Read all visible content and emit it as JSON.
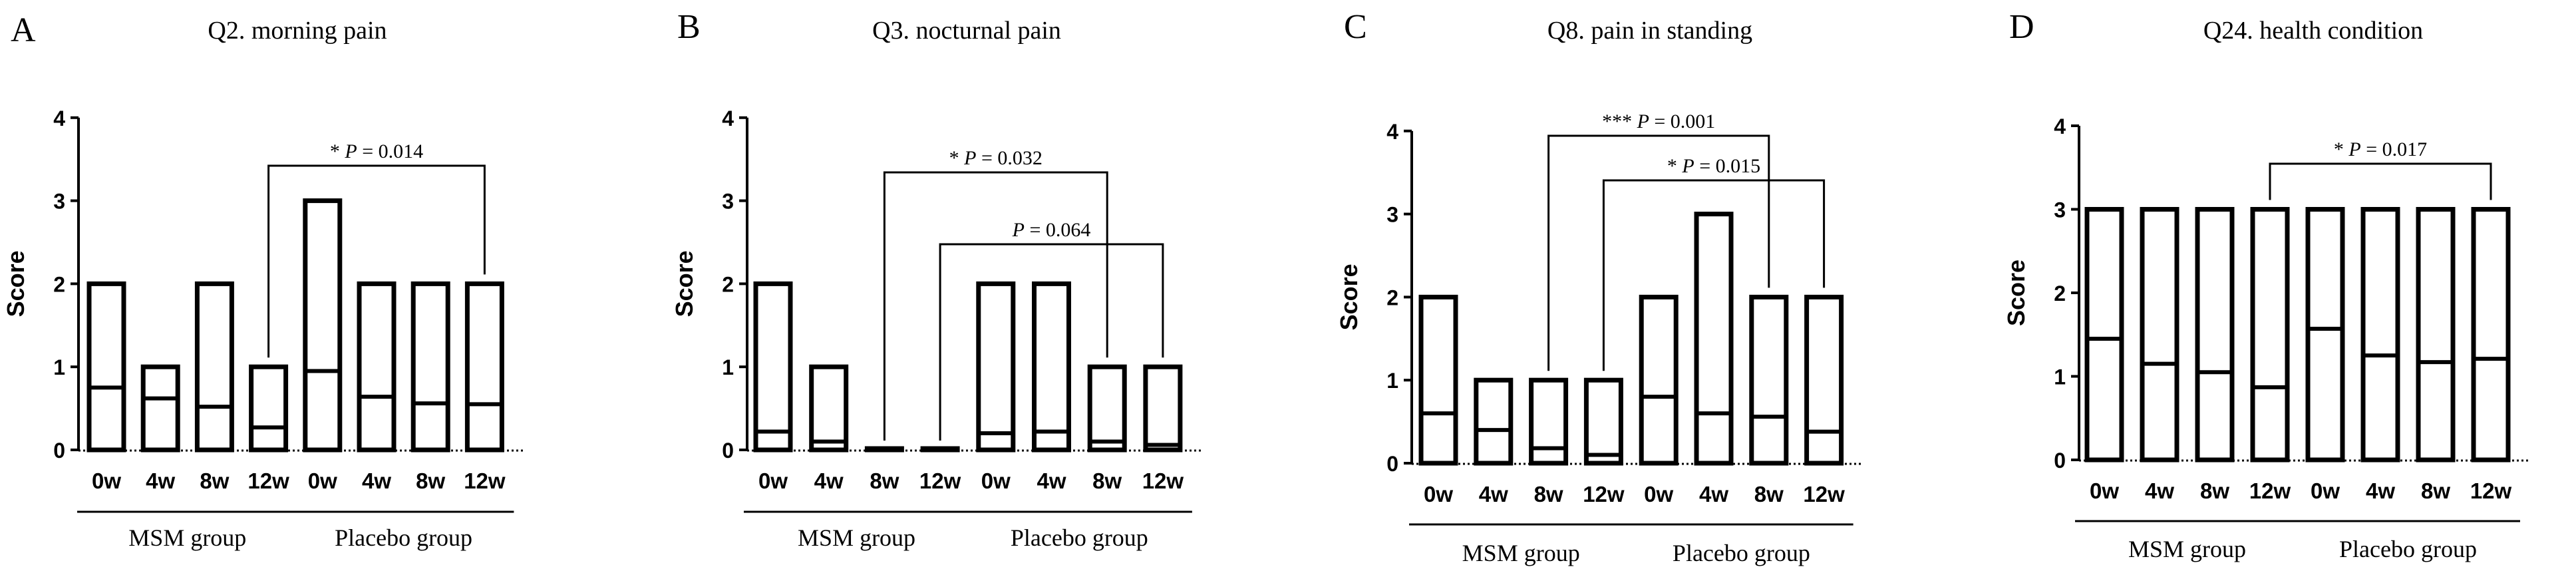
{
  "chart_data": [
    {
      "panel_letter": "A",
      "title": "Q2. morning pain",
      "type": "floating_bar",
      "ylabel": "Score",
      "ylim": [
        0,
        4
      ],
      "yticks": [
        "0",
        "1",
        "2",
        "3",
        "4"
      ],
      "categories": [
        "0w",
        "4w",
        "8w",
        "12w",
        "0w",
        "4w",
        "8w",
        "12w"
      ],
      "groups": [
        {
          "label": "MSM group",
          "from": 0,
          "to": 3
        },
        {
          "label": "Placebo group",
          "from": 4,
          "to": 7
        }
      ],
      "bars": [
        {
          "min": 0,
          "max": 2,
          "mean": 0.75
        },
        {
          "min": 0,
          "max": 1,
          "mean": 0.62
        },
        {
          "min": 0,
          "max": 2,
          "mean": 0.52
        },
        {
          "min": 0,
          "max": 1,
          "mean": 0.27
        },
        {
          "min": 0,
          "max": 3,
          "mean": 0.95
        },
        {
          "min": 0,
          "max": 2,
          "mean": 0.64
        },
        {
          "min": 0,
          "max": 2,
          "mean": 0.56
        },
        {
          "min": 0,
          "max": 2,
          "mean": 0.55
        }
      ],
      "annotations": [
        {
          "stars": "*",
          "p_label": "P",
          "p_value": "0.014",
          "from": 3,
          "to": 7
        }
      ]
    },
    {
      "panel_letter": "B",
      "title": "Q3. nocturnal pain",
      "type": "floating_bar",
      "ylabel": "Score",
      "ylim": [
        0,
        4
      ],
      "yticks": [
        "0",
        "1",
        "2",
        "3",
        "4"
      ],
      "categories": [
        "0w",
        "4w",
        "8w",
        "12w",
        "0w",
        "4w",
        "8w",
        "12w"
      ],
      "groups": [
        {
          "label": "MSM group",
          "from": 0,
          "to": 3
        },
        {
          "label": "Placebo group",
          "from": 4,
          "to": 7
        }
      ],
      "bars": [
        {
          "min": 0,
          "max": 2,
          "mean": 0.22
        },
        {
          "min": 0,
          "max": 1,
          "mean": 0.1
        },
        {
          "min": 0,
          "max": 0,
          "mean": 0
        },
        {
          "min": 0,
          "max": 0,
          "mean": 0
        },
        {
          "min": 0,
          "max": 2,
          "mean": 0.2
        },
        {
          "min": 0,
          "max": 2,
          "mean": 0.22
        },
        {
          "min": 0,
          "max": 1,
          "mean": 0.1
        },
        {
          "min": 0,
          "max": 1,
          "mean": 0.06
        }
      ],
      "annotations": [
        {
          "stars": "*",
          "p_label": "P",
          "p_value": "0.032",
          "from": 2,
          "to": 6
        },
        {
          "stars": "",
          "p_label": "P",
          "p_value": "0.064",
          "from": 3,
          "to": 7
        }
      ]
    },
    {
      "panel_letter": "C",
      "title": "Q8. pain in standing",
      "type": "floating_bar",
      "ylabel": "Score",
      "ylim": [
        0,
        4
      ],
      "yticks": [
        "0",
        "1",
        "2",
        "3",
        "4"
      ],
      "categories": [
        "0w",
        "4w",
        "8w",
        "12w",
        "0w",
        "4w",
        "8w",
        "12w"
      ],
      "groups": [
        {
          "label": "MSM group",
          "from": 0,
          "to": 3
        },
        {
          "label": "Placebo group",
          "from": 4,
          "to": 7
        }
      ],
      "bars": [
        {
          "min": 0,
          "max": 2,
          "mean": 0.6
        },
        {
          "min": 0,
          "max": 1,
          "mean": 0.4
        },
        {
          "min": 0,
          "max": 1,
          "mean": 0.18
        },
        {
          "min": 0,
          "max": 1,
          "mean": 0.1
        },
        {
          "min": 0,
          "max": 2,
          "mean": 0.8
        },
        {
          "min": 0,
          "max": 3,
          "mean": 0.6
        },
        {
          "min": 0,
          "max": 2,
          "mean": 0.56
        },
        {
          "min": 0,
          "max": 2,
          "mean": 0.38
        }
      ],
      "annotations": [
        {
          "stars": "***",
          "p_label": "P",
          "p_value": "0.001",
          "from": 2,
          "to": 6
        },
        {
          "stars": "*",
          "p_label": "P",
          "p_value": "0.015",
          "from": 3,
          "to": 7
        }
      ]
    },
    {
      "panel_letter": "D",
      "title": "Q24. health condition",
      "type": "floating_bar",
      "ylabel": "Score",
      "ylim": [
        0,
        4
      ],
      "yticks": [
        "0",
        "1",
        "2",
        "3",
        "4"
      ],
      "categories": [
        "0w",
        "4w",
        "8w",
        "12w",
        "0w",
        "4w",
        "8w",
        "12w"
      ],
      "groups": [
        {
          "label": "MSM group",
          "from": 0,
          "to": 3
        },
        {
          "label": "Placebo group",
          "from": 4,
          "to": 7
        }
      ],
      "bars": [
        {
          "min": 0,
          "max": 3,
          "mean": 1.45
        },
        {
          "min": 0,
          "max": 3,
          "mean": 1.15
        },
        {
          "min": 0,
          "max": 3,
          "mean": 1.05
        },
        {
          "min": 0,
          "max": 3,
          "mean": 0.87
        },
        {
          "min": 0,
          "max": 3,
          "mean": 1.57
        },
        {
          "min": 0,
          "max": 3,
          "mean": 1.25
        },
        {
          "min": 0,
          "max": 3,
          "mean": 1.17
        },
        {
          "min": 0,
          "max": 3,
          "mean": 1.21
        }
      ],
      "annotations": [
        {
          "stars": "*",
          "p_label": "P",
          "p_value": "0.017",
          "from": 3,
          "to": 7
        }
      ]
    }
  ]
}
